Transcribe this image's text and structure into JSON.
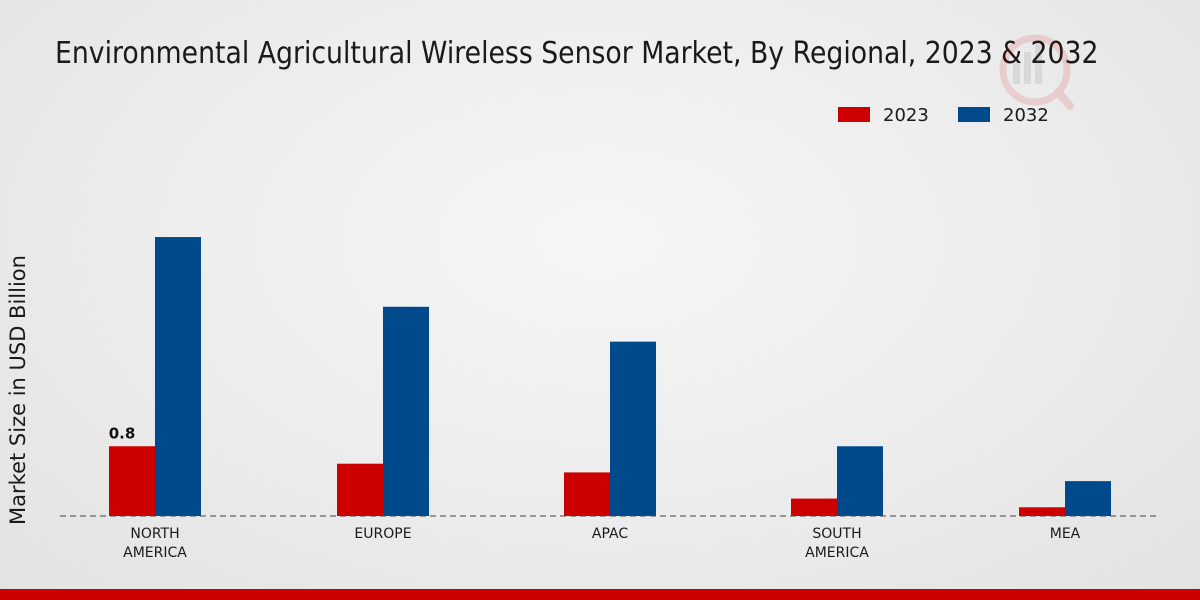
{
  "chart_data": {
    "type": "bar",
    "title": "Environmental Agricultural Wireless Sensor Market, By Regional, 2023 & 2032",
    "xlabel": "",
    "ylabel": "Market Size in USD Billion",
    "categories": [
      "NORTH\nAMERICA",
      "EUROPE",
      "APAC",
      "SOUTH\nAMERICA",
      "MEA"
    ],
    "series": [
      {
        "name": "2023",
        "color": "#cc0000",
        "values": [
          0.8,
          0.6,
          0.5,
          0.2,
          0.1
        ]
      },
      {
        "name": "2032",
        "color": "#004a8c",
        "values": [
          3.2,
          2.4,
          2.0,
          0.8,
          0.4
        ]
      }
    ],
    "data_labels": [
      {
        "series": 0,
        "index": 0,
        "text": "0.8"
      }
    ],
    "ylim": [
      0,
      4.6
    ],
    "legend_position": "top-right",
    "grid": false
  },
  "colors": {
    "accent_bar": "#cc0000",
    "series_2023": "#cc0000",
    "series_2032": "#004a8c"
  }
}
